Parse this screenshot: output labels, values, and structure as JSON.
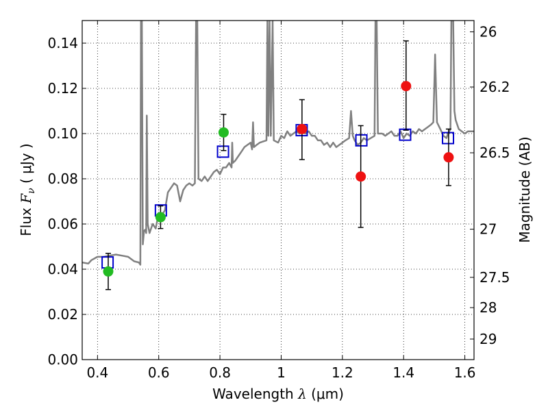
{
  "chart_data": {
    "type": "scatter",
    "title": "",
    "xlabel": {
      "prefix": "Wavelength  ",
      "symbol": "λ",
      "units": " (μm)"
    },
    "ylabel": {
      "prefix": "Flux  ",
      "symbol": "F",
      "subscript": "ν",
      "units": "  ( μJy )"
    },
    "ylabel_right": "Magnitude (AB)",
    "xlim": [
      0.35,
      1.63
    ],
    "ylim": [
      0.0,
      0.15
    ],
    "grid": true,
    "grid_style": "dotted",
    "xticks": [
      {
        "value": 0.4,
        "label": "0.4"
      },
      {
        "value": 0.6,
        "label": "0.6"
      },
      {
        "value": 0.8,
        "label": "0.8"
      },
      {
        "value": 1.0,
        "label": "1"
      },
      {
        "value": 1.2,
        "label": "1.2"
      },
      {
        "value": 1.4,
        "label": "1.4"
      },
      {
        "value": 1.6,
        "label": "1.6"
      }
    ],
    "yticks": [
      {
        "value": 0.0,
        "label": "0.00"
      },
      {
        "value": 0.02,
        "label": "0.02"
      },
      {
        "value": 0.04,
        "label": "0.04"
      },
      {
        "value": 0.06,
        "label": "0.06"
      },
      {
        "value": 0.08,
        "label": "0.08"
      },
      {
        "value": 0.1,
        "label": "0.10"
      },
      {
        "value": 0.12,
        "label": "0.12"
      },
      {
        "value": 0.14,
        "label": "0.14"
      }
    ],
    "right_ticks": [
      {
        "label": "26",
        "flux": 0.145
      },
      {
        "label": "26.2",
        "flux": 0.1206
      },
      {
        "label": "26.5",
        "flux": 0.0915
      },
      {
        "label": "27",
        "flux": 0.0577
      },
      {
        "label": "27.5",
        "flux": 0.0364
      },
      {
        "label": "28",
        "flux": 0.023
      },
      {
        "label": "29",
        "flux": 0.0091
      }
    ],
    "series": [
      {
        "kind": "line",
        "color": "#808080",
        "points": [
          [
            0.35,
            0.043
          ],
          [
            0.37,
            0.0425
          ],
          [
            0.38,
            0.044
          ],
          [
            0.4,
            0.0455
          ],
          [
            0.42,
            0.0455
          ],
          [
            0.44,
            0.046
          ],
          [
            0.46,
            0.0465
          ],
          [
            0.48,
            0.046
          ],
          [
            0.5,
            0.0455
          ],
          [
            0.52,
            0.0435
          ],
          [
            0.535,
            0.043
          ],
          [
            0.54,
            0.042
          ],
          [
            0.542,
            0.15
          ],
          [
            0.545,
            0.15
          ],
          [
            0.548,
            0.051
          ],
          [
            0.552,
            0.057
          ],
          [
            0.556,
            0.0575
          ],
          [
            0.559,
            0.056
          ],
          [
            0.561,
            0.108
          ],
          [
            0.564,
            0.06
          ],
          [
            0.57,
            0.056
          ],
          [
            0.58,
            0.06
          ],
          [
            0.59,
            0.058
          ],
          [
            0.6,
            0.065
          ],
          [
            0.61,
            0.064
          ],
          [
            0.62,
            0.066
          ],
          [
            0.63,
            0.074
          ],
          [
            0.64,
            0.076
          ],
          [
            0.65,
            0.078
          ],
          [
            0.66,
            0.077
          ],
          [
            0.67,
            0.07
          ],
          [
            0.68,
            0.075
          ],
          [
            0.69,
            0.077
          ],
          [
            0.7,
            0.078
          ],
          [
            0.71,
            0.077
          ],
          [
            0.718,
            0.078
          ],
          [
            0.722,
            0.15
          ],
          [
            0.726,
            0.15
          ],
          [
            0.73,
            0.08
          ],
          [
            0.74,
            0.079
          ],
          [
            0.75,
            0.081
          ],
          [
            0.76,
            0.079
          ],
          [
            0.77,
            0.081
          ],
          [
            0.78,
            0.083
          ],
          [
            0.79,
            0.084
          ],
          [
            0.8,
            0.082
          ],
          [
            0.81,
            0.085
          ],
          [
            0.82,
            0.085
          ],
          [
            0.83,
            0.087
          ],
          [
            0.838,
            0.085
          ],
          [
            0.84,
            0.096
          ],
          [
            0.842,
            0.087
          ],
          [
            0.85,
            0.088
          ],
          [
            0.86,
            0.09
          ],
          [
            0.87,
            0.092
          ],
          [
            0.88,
            0.094
          ],
          [
            0.89,
            0.095
          ],
          [
            0.9,
            0.096
          ],
          [
            0.905,
            0.093
          ],
          [
            0.908,
            0.105
          ],
          [
            0.911,
            0.094
          ],
          [
            0.92,
            0.095
          ],
          [
            0.93,
            0.096
          ],
          [
            0.952,
            0.097
          ],
          [
            0.955,
            0.15
          ],
          [
            0.958,
            0.099
          ],
          [
            0.962,
            0.15
          ],
          [
            0.966,
            0.099
          ],
          [
            0.972,
            0.15
          ],
          [
            0.976,
            0.097
          ],
          [
            0.99,
            0.096
          ],
          [
            1.0,
            0.099
          ],
          [
            1.01,
            0.098
          ],
          [
            1.02,
            0.101
          ],
          [
            1.03,
            0.099
          ],
          [
            1.04,
            0.1
          ],
          [
            1.05,
            0.101
          ],
          [
            1.06,
            0.1
          ],
          [
            1.07,
            0.102
          ],
          [
            1.08,
            0.1
          ],
          [
            1.09,
            0.101
          ],
          [
            1.1,
            0.099
          ],
          [
            1.11,
            0.099
          ],
          [
            1.12,
            0.097
          ],
          [
            1.13,
            0.097
          ],
          [
            1.14,
            0.095
          ],
          [
            1.15,
            0.096
          ],
          [
            1.16,
            0.094
          ],
          [
            1.17,
            0.096
          ],
          [
            1.18,
            0.094
          ],
          [
            1.19,
            0.095
          ],
          [
            1.2,
            0.096
          ],
          [
            1.21,
            0.097
          ],
          [
            1.222,
            0.098
          ],
          [
            1.228,
            0.11
          ],
          [
            1.234,
            0.099
          ],
          [
            1.24,
            0.097
          ],
          [
            1.25,
            0.095
          ],
          [
            1.26,
            0.096
          ],
          [
            1.27,
            0.098
          ],
          [
            1.28,
            0.097
          ],
          [
            1.305,
            0.099
          ],
          [
            1.308,
            0.15
          ],
          [
            1.312,
            0.15
          ],
          [
            1.316,
            0.1
          ],
          [
            1.33,
            0.1
          ],
          [
            1.34,
            0.099
          ],
          [
            1.35,
            0.1
          ],
          [
            1.36,
            0.101
          ],
          [
            1.37,
            0.099
          ],
          [
            1.38,
            0.099
          ],
          [
            1.39,
            0.101
          ],
          [
            1.4,
            0.098
          ],
          [
            1.41,
            0.1
          ],
          [
            1.42,
            0.099
          ],
          [
            1.43,
            0.101
          ],
          [
            1.44,
            0.1
          ],
          [
            1.45,
            0.102
          ],
          [
            1.46,
            0.101
          ],
          [
            1.47,
            0.102
          ],
          [
            1.48,
            0.103
          ],
          [
            1.49,
            0.104
          ],
          [
            1.497,
            0.105
          ],
          [
            1.503,
            0.135
          ],
          [
            1.509,
            0.105
          ],
          [
            1.52,
            0.102
          ],
          [
            1.53,
            0.099
          ],
          [
            1.54,
            0.098
          ],
          [
            1.545,
            0.1
          ],
          [
            1.553,
            0.102
          ],
          [
            1.556,
            0.15
          ],
          [
            1.562,
            0.15
          ],
          [
            1.566,
            0.11
          ],
          [
            1.57,
            0.106
          ],
          [
            1.58,
            0.102
          ],
          [
            1.59,
            0.101
          ],
          [
            1.6,
            0.1
          ],
          [
            1.61,
            0.101
          ],
          [
            1.63,
            0.101
          ]
        ]
      },
      {
        "kind": "open-square",
        "color": "#0000cc",
        "points": [
          [
            0.433,
            0.043
          ],
          [
            0.607,
            0.066
          ],
          [
            0.81,
            0.092
          ],
          [
            1.067,
            0.1015
          ],
          [
            1.262,
            0.097
          ],
          [
            1.405,
            0.0995
          ],
          [
            1.545,
            0.098
          ]
        ]
      },
      {
        "kind": "filled-circle",
        "color": "#22bb22",
        "points": [
          {
            "x": 0.435,
            "y": 0.039,
            "err": [
              0.031,
              0.047
            ]
          },
          {
            "x": 0.606,
            "y": 0.063,
            "err": [
              0.058,
              0.068
            ]
          },
          {
            "x": 0.812,
            "y": 0.1005,
            "err": [
              0.0925,
              0.1085
            ]
          }
        ]
      },
      {
        "kind": "filled-circle",
        "color": "#ee1111",
        "points": [
          {
            "x": 1.068,
            "y": 0.102,
            "err": [
              0.0885,
              0.115
            ]
          },
          {
            "x": 1.26,
            "y": 0.081,
            "err": [
              0.0585,
              0.1035
            ]
          },
          {
            "x": 1.408,
            "y": 0.121,
            "err": [
              0.1015,
              0.141
            ]
          },
          {
            "x": 1.547,
            "y": 0.0895,
            "err": [
              0.077,
              0.102
            ]
          }
        ]
      }
    ]
  }
}
